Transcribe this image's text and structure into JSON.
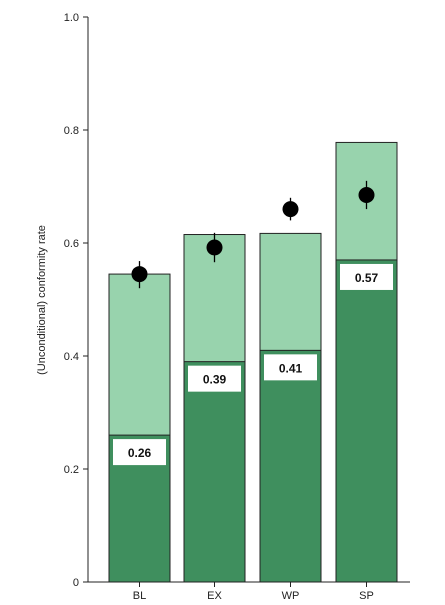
{
  "chart_data": {
    "type": "bar",
    "categories": [
      "BL",
      "EX",
      "WP",
      "SP"
    ],
    "series": [
      {
        "values": [
          0.26,
          0.39,
          0.41,
          0.57
        ]
      },
      {
        "values": [
          0.545,
          0.615,
          0.617,
          0.778
        ]
      }
    ],
    "points": [
      0.545,
      0.592,
      0.66,
      0.685
    ],
    "point_error_low": [
      0.52,
      0.566,
      0.64,
      0.66
    ],
    "point_error_high": [
      0.568,
      0.618,
      0.68,
      0.71
    ],
    "value_labels": [
      "0.26",
      "0.39",
      "0.41",
      "0.57"
    ],
    "title": "",
    "xlabel": "",
    "ylabel": "(Unconditional) conformity rate",
    "ylim": [
      0,
      1.0
    ],
    "yticks": [
      0,
      0.2,
      0.4,
      0.6,
      0.8,
      1.0
    ],
    "ytick_labels": [
      "0",
      "0.2",
      "0.4",
      "0.6",
      "0.8",
      "1.0"
    ],
    "grid": false,
    "colors": {
      "dark": "#3f8f5e",
      "light": "#98d3ad",
      "point": "#000000",
      "axis": "#222222"
    }
  }
}
